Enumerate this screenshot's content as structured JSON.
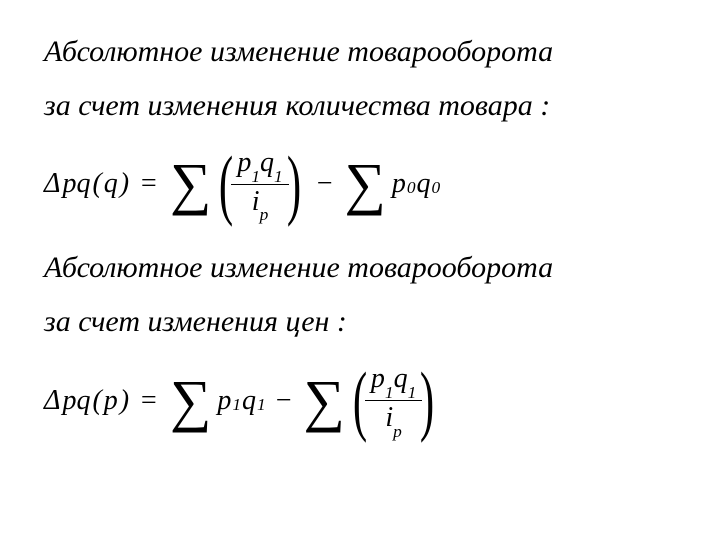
{
  "page": {
    "background_color": "#ffffff",
    "text_color": "#000000",
    "font_family": "Times New Roman",
    "font_style": "italic",
    "body_fontsize": 30,
    "formula_fontsize": 28,
    "sigma_fontsize": 58,
    "paren_fontsize": 78
  },
  "heading1_line1": "Абсолютное изменение товарооборота",
  "heading1_line2": "за счет изменения количества товара :",
  "formula1": {
    "lhs_delta": "Δ",
    "lhs_var": "pq",
    "lhs_arg": "q",
    "eq": "=",
    "sigma": "∑",
    "lparen": "(",
    "rparen": ")",
    "frac_num_p": "p",
    "frac_num_psub": "1",
    "frac_num_q": "q",
    "frac_num_qsub": "1",
    "frac_den_i": "i",
    "frac_den_isub": "p",
    "minus": "−",
    "term_p": "p",
    "term_psub": "0",
    "term_q": "q",
    "term_qsub": "0"
  },
  "heading2_line1": "Абсолютное изменение товарооборота",
  "heading2_line2": "за счет изменения цен :",
  "formula2": {
    "lhs_delta": "Δ",
    "lhs_var": "pq",
    "lhs_arg": "p",
    "eq": "=",
    "sigma": "∑",
    "term_p": "p",
    "term_psub": "1",
    "term_q": "q",
    "term_qsub": "1",
    "minus": "−",
    "lparen": "(",
    "rparen": ")",
    "frac_num_p": "p",
    "frac_num_psub": "1",
    "frac_num_q": "q",
    "frac_num_qsub": "1",
    "frac_den_i": "i",
    "frac_den_isub": "p"
  }
}
